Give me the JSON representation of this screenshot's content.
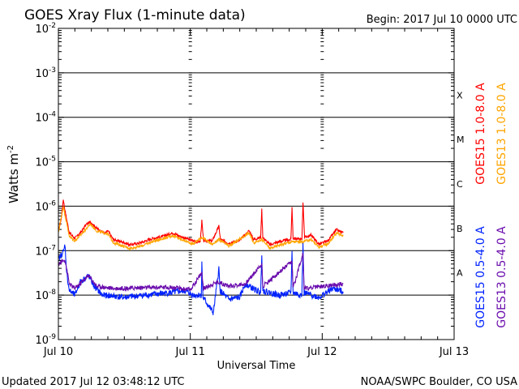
{
  "chart_data": {
    "type": "line",
    "title": "GOES Xray Flux (1-minute data)",
    "begin_label": "Begin:  2017 Jul 10 0000 UTC",
    "xlabel": "Universal Time",
    "ylabel": {
      "base": "Watts m",
      "exp": "-2"
    },
    "x_unit": "hours since 2017 Jul 10 0000 UTC",
    "xlim": [
      0,
      72
    ],
    "ylim_log10": [
      -9,
      -2
    ],
    "y_scale": "log",
    "grid": "horizontal lines at each decade 1e-8 to 1e-3",
    "x_ticks": [
      {
        "hour": 0,
        "label": "Jul 10"
      },
      {
        "hour": 24,
        "label": "Jul 11"
      },
      {
        "hour": 48,
        "label": "Jul 12"
      },
      {
        "hour": 72,
        "label": "Jul 13"
      }
    ],
    "y_ticks": [
      {
        "exp": -2,
        "base": "10",
        "label_exp": "-2"
      },
      {
        "exp": -3,
        "base": "10",
        "label_exp": "-3"
      },
      {
        "exp": -4,
        "base": "10",
        "label_exp": "-4"
      },
      {
        "exp": -5,
        "base": "10",
        "label_exp": "-5"
      },
      {
        "exp": -6,
        "base": "10",
        "label_exp": "-6"
      },
      {
        "exp": -7,
        "base": "10",
        "label_exp": "-7"
      },
      {
        "exp": -8,
        "base": "10",
        "label_exp": "-8"
      },
      {
        "exp": -9,
        "base": "10",
        "label_exp": "-9"
      }
    ],
    "flare_classes": [
      {
        "label": "X",
        "decade": -4
      },
      {
        "label": "M",
        "decade": -5
      },
      {
        "label": "C",
        "decade": -6
      },
      {
        "label": "B",
        "decade": -7
      },
      {
        "label": "A",
        "decade": -8
      }
    ],
    "series": [
      {
        "name": "GOES15 1.0-8.0 A",
        "color": "#ff0000",
        "noise": 0.03,
        "legend_group": "long",
        "legend_col": 0,
        "points_log10": [
          [
            0,
            -6.55
          ],
          [
            0.5,
            -6.3
          ],
          [
            0.9,
            -5.84
          ],
          [
            1.2,
            -6.1
          ],
          [
            2,
            -6.6
          ],
          [
            3,
            -6.72
          ],
          [
            4,
            -6.6
          ],
          [
            5,
            -6.42
          ],
          [
            5.8,
            -6.35
          ],
          [
            7,
            -6.5
          ],
          [
            8.5,
            -6.62
          ],
          [
            9,
            -6.55
          ],
          [
            10,
            -6.75
          ],
          [
            12,
            -6.82
          ],
          [
            13,
            -6.87
          ],
          [
            15,
            -6.82
          ],
          [
            17,
            -6.73
          ],
          [
            19,
            -6.68
          ],
          [
            20.8,
            -6.6
          ],
          [
            22,
            -6.67
          ],
          [
            24.5,
            -6.78
          ],
          [
            25.8,
            -6.8
          ],
          [
            26.1,
            -6.33
          ],
          [
            26.4,
            -6.78
          ],
          [
            28,
            -6.78
          ],
          [
            29.2,
            -6.45
          ],
          [
            29.5,
            -6.75
          ],
          [
            31,
            -6.83
          ],
          [
            33,
            -6.77
          ],
          [
            34.7,
            -6.55
          ],
          [
            35.5,
            -6.75
          ],
          [
            36.8,
            -6.7
          ],
          [
            37,
            -6.07
          ],
          [
            37.2,
            -6.7
          ],
          [
            38.5,
            -6.87
          ],
          [
            40,
            -6.8
          ],
          [
            42.3,
            -6.75
          ],
          [
            42.5,
            -6.02
          ],
          [
            42.7,
            -6.72
          ],
          [
            44.3,
            -6.75
          ],
          [
            44.5,
            -5.89
          ],
          [
            44.8,
            -6.7
          ],
          [
            46,
            -6.65
          ],
          [
            47.4,
            -6.86
          ],
          [
            49,
            -6.78
          ],
          [
            50.6,
            -6.53
          ],
          [
            51.8,
            -6.6
          ]
        ]
      },
      {
        "name": "GOES13 1.0-8.0 A",
        "color": "#ffa500",
        "noise": 0.03,
        "legend_group": "long",
        "legend_col": 1,
        "points_log10": [
          [
            0,
            -6.6
          ],
          [
            0.9,
            -6.0
          ],
          [
            1.2,
            -6.2
          ],
          [
            2,
            -6.68
          ],
          [
            3,
            -6.78
          ],
          [
            4,
            -6.66
          ],
          [
            5.8,
            -6.4
          ],
          [
            7,
            -6.56
          ],
          [
            9,
            -6.62
          ],
          [
            10,
            -6.82
          ],
          [
            13,
            -6.95
          ],
          [
            15,
            -6.9
          ],
          [
            17,
            -6.8
          ],
          [
            20.8,
            -6.66
          ],
          [
            22,
            -6.73
          ],
          [
            24.5,
            -6.85
          ],
          [
            26.1,
            -6.7
          ],
          [
            28,
            -6.86
          ],
          [
            29.2,
            -6.75
          ],
          [
            31,
            -6.9
          ],
          [
            34.7,
            -6.6
          ],
          [
            35.5,
            -6.82
          ],
          [
            37,
            -6.75
          ],
          [
            38.5,
            -6.95
          ],
          [
            40,
            -6.88
          ],
          [
            42.5,
            -6.8
          ],
          [
            44.5,
            -6.8
          ],
          [
            46,
            -6.75
          ],
          [
            47.4,
            -6.92
          ],
          [
            49,
            -6.85
          ],
          [
            50.6,
            -6.6
          ],
          [
            51.8,
            -6.67
          ]
        ]
      },
      {
        "name": "GOES15 0.5-4.0 A",
        "color": "#0022ff",
        "noise": 0.07,
        "legend_group": "short",
        "legend_col": 0,
        "points_log10": [
          [
            0,
            -7.2
          ],
          [
            1.0,
            -7.0
          ],
          [
            1.2,
            -6.84
          ],
          [
            1.5,
            -7.5
          ],
          [
            2,
            -7.9
          ],
          [
            3,
            -8.0
          ],
          [
            4,
            -7.7
          ],
          [
            5.5,
            -7.56
          ],
          [
            6.5,
            -7.8
          ],
          [
            8,
            -8.0
          ],
          [
            12,
            -8.05
          ],
          [
            16,
            -8.0
          ],
          [
            20,
            -7.95
          ],
          [
            23,
            -7.9
          ],
          [
            24.5,
            -8.0
          ],
          [
            26,
            -8.0
          ],
          [
            26.1,
            -7.29
          ],
          [
            26.3,
            -8.05
          ],
          [
            28.2,
            -8.4
          ],
          [
            29.2,
            -7.4
          ],
          [
            29.4,
            -7.9
          ],
          [
            31,
            -8.1
          ],
          [
            33,
            -8.05
          ],
          [
            34,
            -7.75
          ],
          [
            36.8,
            -7.95
          ],
          [
            37,
            -7.05
          ],
          [
            37.2,
            -7.9
          ],
          [
            40,
            -8.0
          ],
          [
            42.3,
            -7.95
          ],
          [
            42.5,
            -7.05
          ],
          [
            42.7,
            -7.95
          ],
          [
            44.3,
            -8.0
          ],
          [
            44.5,
            -6.87
          ],
          [
            44.7,
            -7.95
          ],
          [
            47.4,
            -8.05
          ],
          [
            50,
            -7.85
          ],
          [
            51.8,
            -7.92
          ]
        ]
      },
      {
        "name": "GOES13 0.5-4.0 A",
        "color": "#6a0dad",
        "noise": 0.05,
        "legend_group": "short",
        "legend_col": 1,
        "points_log10": [
          [
            0,
            -7.3
          ],
          [
            1.2,
            -7.2
          ],
          [
            2,
            -7.75
          ],
          [
            3,
            -7.85
          ],
          [
            5.5,
            -7.56
          ],
          [
            7,
            -7.8
          ],
          [
            10,
            -7.85
          ],
          [
            20,
            -7.82
          ],
          [
            24,
            -7.88
          ],
          [
            26.1,
            -7.5
          ],
          [
            26.4,
            -7.85
          ],
          [
            29,
            -7.7
          ],
          [
            31,
            -7.8
          ],
          [
            34,
            -7.75
          ],
          [
            37,
            -7.3
          ],
          [
            37.2,
            -7.8
          ],
          [
            42.5,
            -7.25
          ],
          [
            42.7,
            -7.85
          ],
          [
            44.5,
            -7.05
          ],
          [
            44.7,
            -7.85
          ],
          [
            48,
            -7.8
          ],
          [
            51.8,
            -7.75
          ]
        ]
      }
    ]
  },
  "footer": {
    "updated": "Updated 2017 Jul 12 03:48:12 UTC",
    "source": "NOAA/SWPC Boulder, CO USA"
  }
}
